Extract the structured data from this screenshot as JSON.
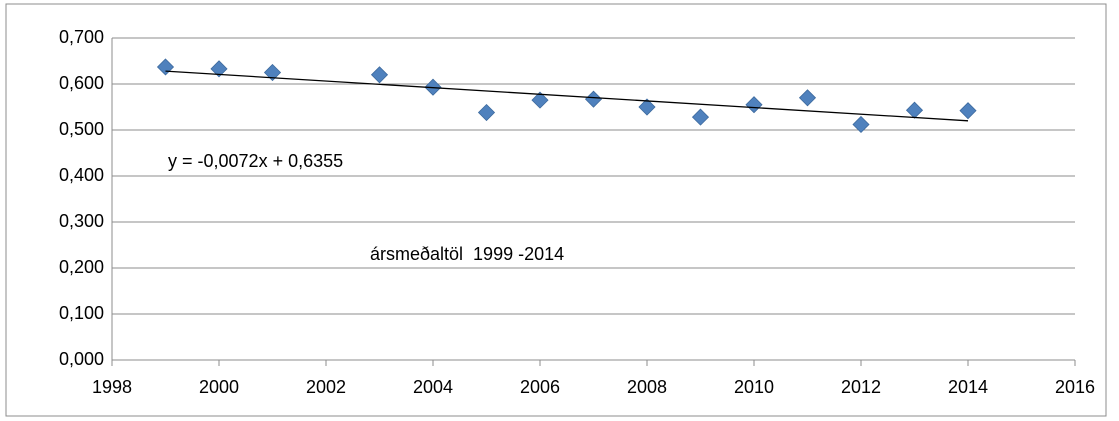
{
  "chart_data": {
    "type": "scatter",
    "x": [
      1999,
      2000,
      2001,
      2003,
      2004,
      2005,
      2006,
      2007,
      2008,
      2009,
      2010,
      2011,
      2012,
      2013,
      2014
    ],
    "series": [
      {
        "color": "#4f81bd",
        "values": [
          0.637,
          0.633,
          0.625,
          0.62,
          0.593,
          0.538,
          0.565,
          0.567,
          0.55,
          0.528,
          0.555,
          0.57,
          0.512,
          0.543,
          0.542
        ]
      }
    ],
    "trendline": {
      "label": "y = -0,0072x + 0,6355",
      "x": [
        1999,
        2014
      ],
      "values": [
        0.628,
        0.52
      ],
      "color": "#000000"
    },
    "annotation": "ársmeðaltöl  1999 -2014",
    "xlim": [
      1998,
      2016
    ],
    "xticks": [
      1998,
      2000,
      2002,
      2004,
      2006,
      2008,
      2010,
      2012,
      2014,
      2016
    ],
    "ylim": [
      0,
      0.7
    ],
    "yticks": [
      {
        "value": 0,
        "label": "0,000"
      },
      {
        "value": 0.1,
        "label": "0,100"
      },
      {
        "value": 0.2,
        "label": "0,200"
      },
      {
        "value": 0.3,
        "label": "0,300"
      },
      {
        "value": 0.4,
        "label": "0,400"
      },
      {
        "value": 0.5,
        "label": "0,500"
      },
      {
        "value": 0.6,
        "label": "0,600"
      },
      {
        "value": 0.7,
        "label": "0,700"
      }
    ],
    "grid": true
  }
}
